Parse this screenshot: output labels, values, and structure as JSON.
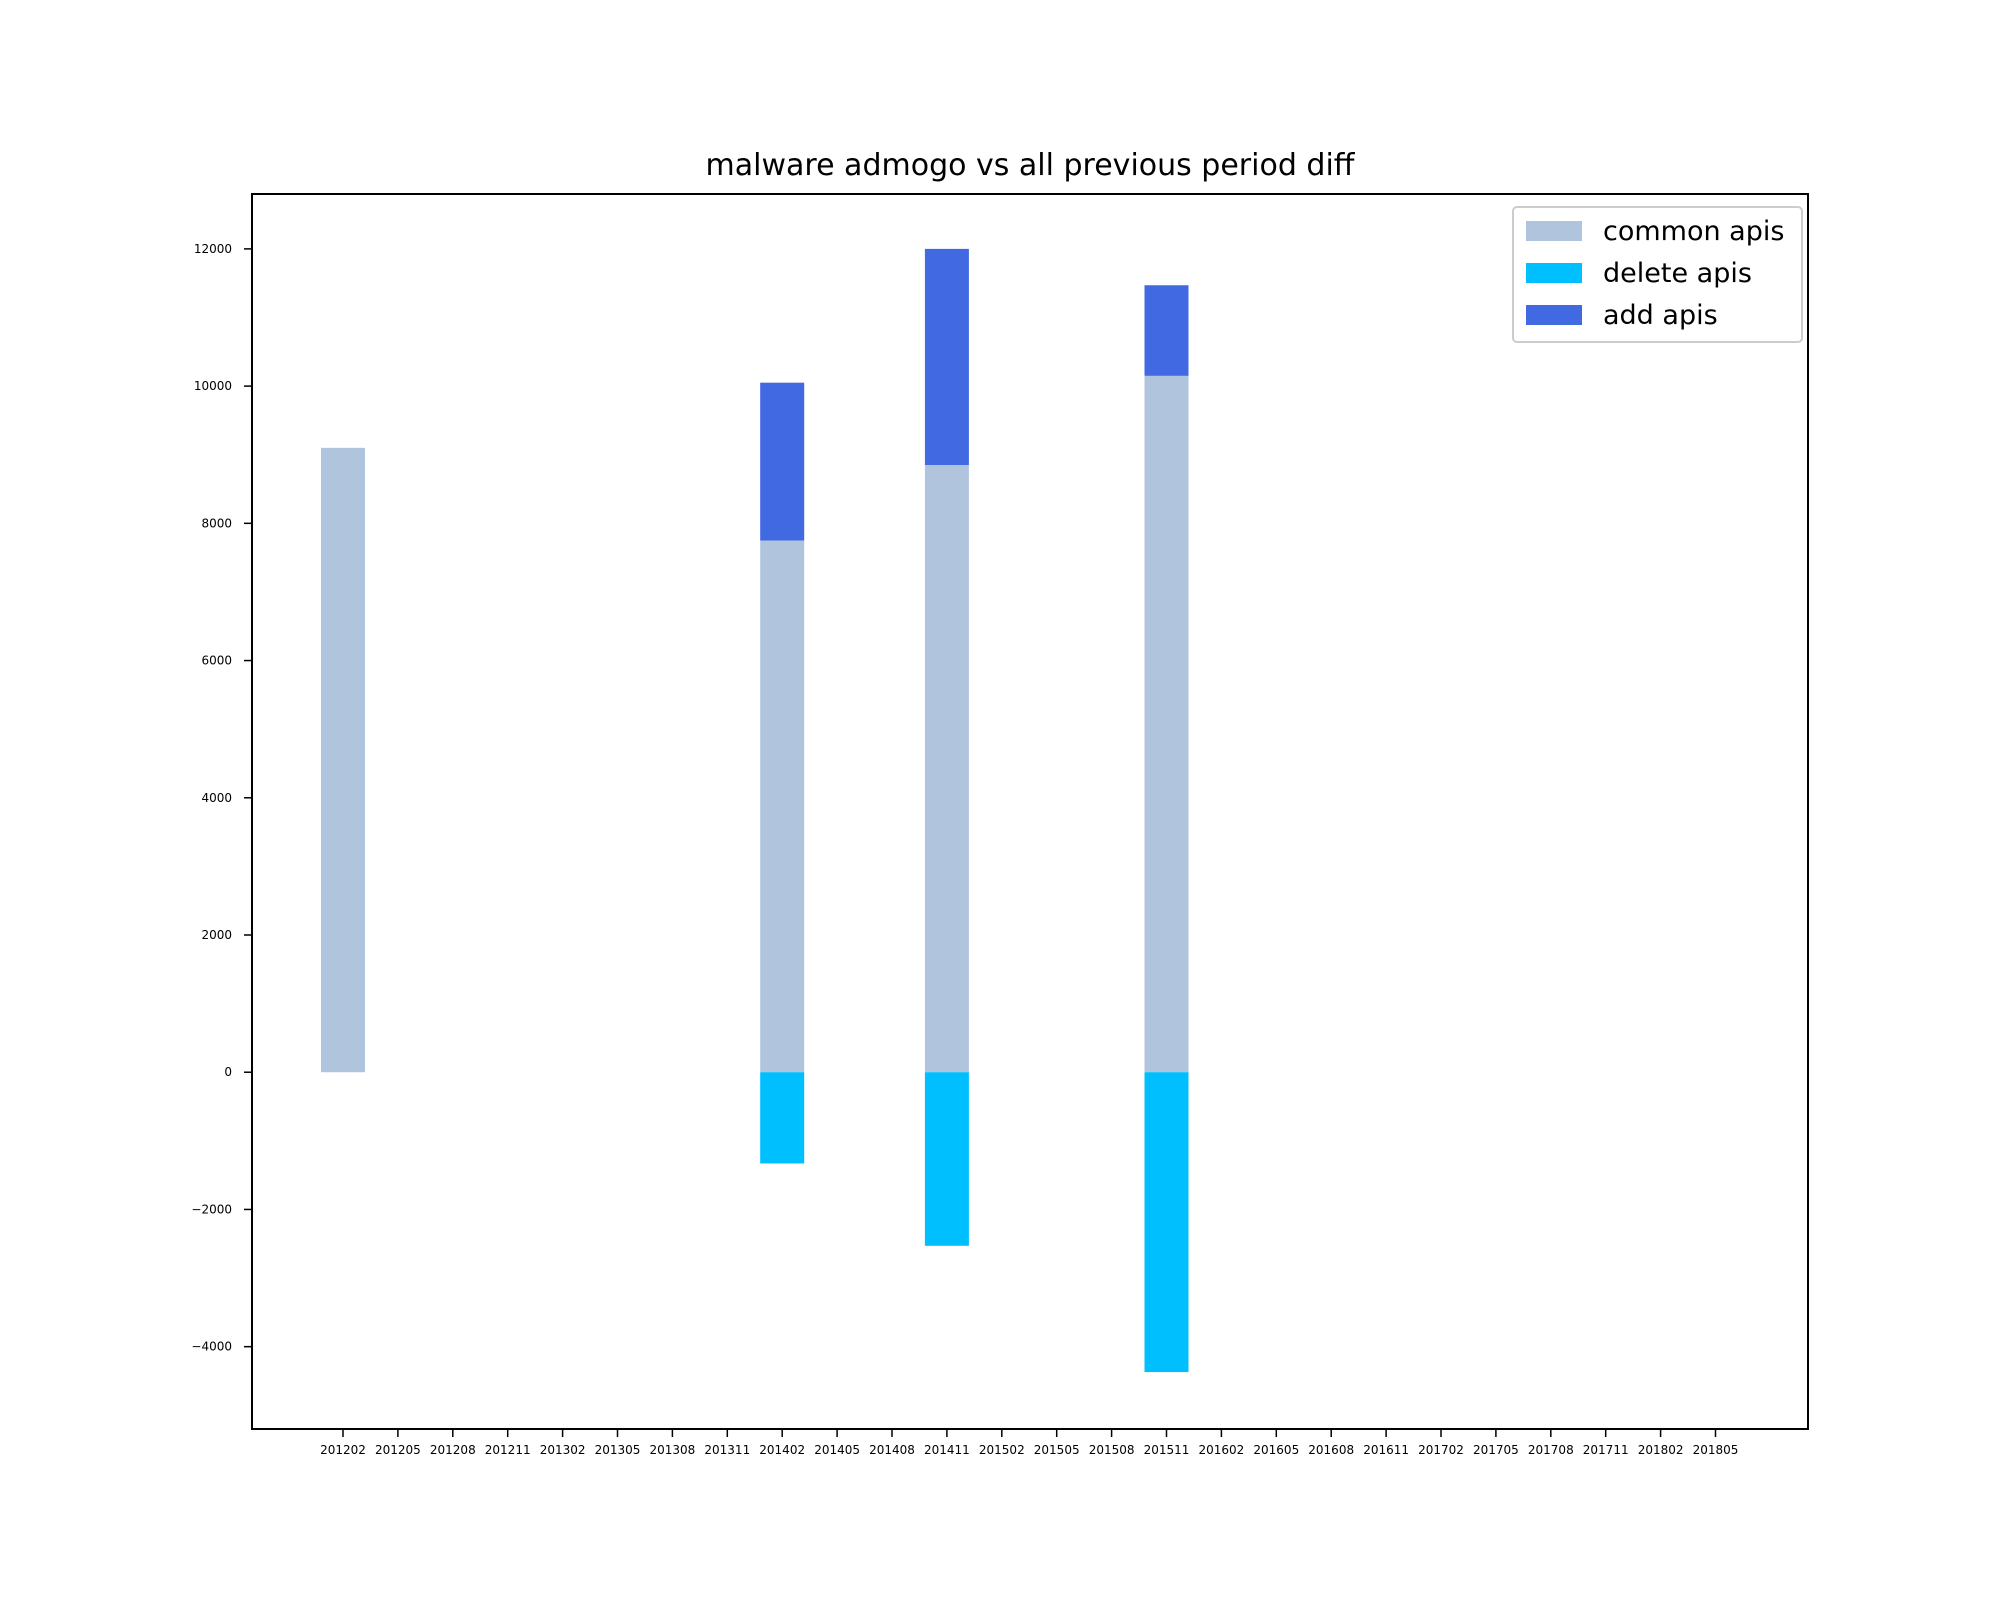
{
  "chart_data": {
    "type": "bar",
    "stacked": true,
    "title": "malware admogo vs all previous period diff",
    "xlabel": "",
    "ylabel": "",
    "categories": [
      "201202",
      "201205",
      "201208",
      "201211",
      "201302",
      "201305",
      "201308",
      "201311",
      "201402",
      "201405",
      "201408",
      "201411",
      "201502",
      "201505",
      "201508",
      "201511",
      "201602",
      "201605",
      "201608",
      "201611",
      "201702",
      "201705",
      "201708",
      "201711",
      "201802",
      "201805"
    ],
    "series": [
      {
        "name": "common apis",
        "color": "#b0c4de",
        "values": [
          9100,
          0,
          0,
          0,
          0,
          0,
          0,
          0,
          7750,
          0,
          0,
          8850,
          0,
          0,
          0,
          10150,
          0,
          0,
          0,
          0,
          0,
          0,
          0,
          0,
          0,
          0
        ]
      },
      {
        "name": "delete apis",
        "color": "#00bfff",
        "values": [
          0,
          0,
          0,
          0,
          0,
          0,
          0,
          0,
          -1330,
          0,
          0,
          -2530,
          0,
          0,
          0,
          -4370,
          0,
          0,
          0,
          0,
          0,
          0,
          0,
          0,
          0,
          0
        ]
      },
      {
        "name": "add apis",
        "color": "#4169e1",
        "values": [
          0,
          0,
          0,
          0,
          0,
          0,
          0,
          0,
          2300,
          0,
          0,
          3150,
          0,
          0,
          0,
          1320,
          0,
          0,
          0,
          0,
          0,
          0,
          0,
          0,
          0,
          0
        ]
      }
    ],
    "ylim": [
      -5200,
      12800
    ],
    "yticks": [
      {
        "value": -4000,
        "label": "−4000"
      },
      {
        "value": -2000,
        "label": "−2000"
      },
      {
        "value": 0,
        "label": "0"
      },
      {
        "value": 2000,
        "label": "2000"
      },
      {
        "value": 4000,
        "label": "4000"
      },
      {
        "value": 6000,
        "label": "6000"
      },
      {
        "value": 8000,
        "label": "8000"
      },
      {
        "value": 10000,
        "label": "10000"
      },
      {
        "value": 12000,
        "label": "12000"
      }
    ],
    "grid": false,
    "legend_position": "top-right"
  }
}
